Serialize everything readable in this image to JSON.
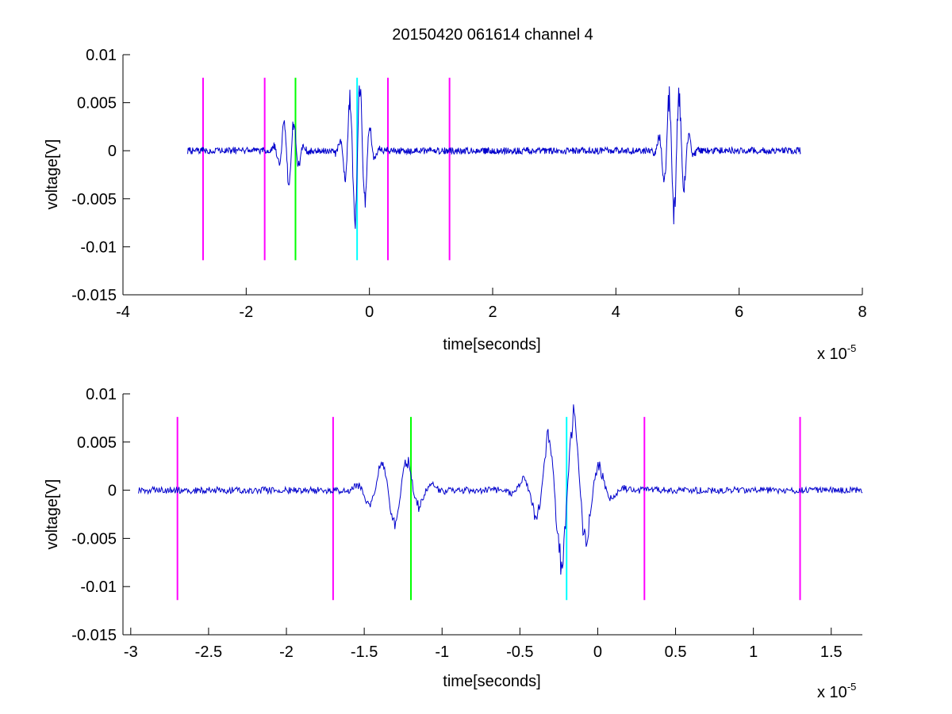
{
  "title": "20150420 061614 channel 4",
  "colors": {
    "signal": "#0000cc",
    "magenta": "#ff00ff",
    "green": "#00ff00",
    "cyan": "#00ffff"
  },
  "chart_data": [
    {
      "type": "line",
      "title": "20150420 061614 channel 4",
      "xlabel": "time[seconds]",
      "ylabel": "voltage[V]",
      "x_exponent_label": "x 10",
      "x_exponent_sup": "-5",
      "xlim": [
        -4,
        8
      ],
      "ylim": [
        -0.015,
        0.01
      ],
      "x_ticks": [
        -4,
        -2,
        0,
        2,
        4,
        6,
        8
      ],
      "x_tick_labels": [
        "-4",
        "-2",
        "0",
        "2",
        "4",
        "6",
        "8"
      ],
      "y_ticks": [
        0.01,
        0.005,
        0,
        -0.005,
        -0.01,
        -0.015
      ],
      "y_tick_labels": [
        "0.01",
        "0.005",
        "0",
        "-0.005",
        "-0.01",
        "-0.015"
      ],
      "grid": false,
      "signal_range": [
        -2.95,
        7.0
      ],
      "bursts": [
        {
          "center": -1.3,
          "amp": 0.0045,
          "width": 0.25
        },
        {
          "center": -0.2,
          "amp": 0.0095,
          "width": 0.28
        },
        {
          "center": 4.95,
          "amp": 0.0085,
          "width": 0.28
        }
      ],
      "markers": [
        {
          "x": -2.7,
          "y_top": 0.0076,
          "y_bottom": -0.0114,
          "color": "magenta"
        },
        {
          "x": -1.7,
          "y_top": 0.0076,
          "y_bottom": -0.0114,
          "color": "magenta"
        },
        {
          "x": -1.2,
          "y_top": 0.0076,
          "y_bottom": -0.0114,
          "color": "green"
        },
        {
          "x": -0.2,
          "y_top": 0.0076,
          "y_bottom": -0.0114,
          "color": "cyan"
        },
        {
          "x": 0.3,
          "y_top": 0.0076,
          "y_bottom": -0.0114,
          "color": "magenta"
        },
        {
          "x": 1.3,
          "y_top": 0.0076,
          "y_bottom": -0.0114,
          "color": "magenta"
        }
      ]
    },
    {
      "type": "line",
      "title": "",
      "xlabel": "time[seconds]",
      "ylabel": "voltage[V]",
      "x_exponent_label": "x 10",
      "x_exponent_sup": "-5",
      "xlim": [
        -3.05,
        1.7
      ],
      "ylim": [
        -0.015,
        0.01
      ],
      "x_ticks": [
        -3,
        -2.5,
        -2,
        -1.5,
        -1,
        -0.5,
        0,
        0.5,
        1,
        1.5
      ],
      "x_tick_labels": [
        "-3",
        "-2.5",
        "-2",
        "-1.5",
        "-1",
        "-0.5",
        "0",
        "0.5",
        "1",
        "1.5"
      ],
      "y_ticks": [
        0.01,
        0.005,
        0,
        -0.005,
        -0.01,
        -0.015
      ],
      "y_tick_labels": [
        "0.01",
        "0.005",
        "0",
        "-0.005",
        "-0.01",
        "-0.015"
      ],
      "grid": false,
      "signal_range": [
        -2.95,
        1.7
      ],
      "bursts": [
        {
          "center": -1.3,
          "amp": 0.0045,
          "width": 0.25
        },
        {
          "center": -0.2,
          "amp": 0.0095,
          "width": 0.28
        }
      ],
      "markers": [
        {
          "x": -2.7,
          "y_top": 0.0076,
          "y_bottom": -0.0114,
          "color": "magenta"
        },
        {
          "x": -1.7,
          "y_top": 0.0076,
          "y_bottom": -0.0114,
          "color": "magenta"
        },
        {
          "x": -1.2,
          "y_top": 0.0076,
          "y_bottom": -0.0114,
          "color": "green"
        },
        {
          "x": -0.2,
          "y_top": 0.0076,
          "y_bottom": -0.0114,
          "color": "cyan"
        },
        {
          "x": 0.3,
          "y_top": 0.0076,
          "y_bottom": -0.0114,
          "color": "magenta"
        },
        {
          "x": 1.3,
          "y_top": 0.0076,
          "y_bottom": -0.0114,
          "color": "magenta"
        }
      ]
    }
  ]
}
